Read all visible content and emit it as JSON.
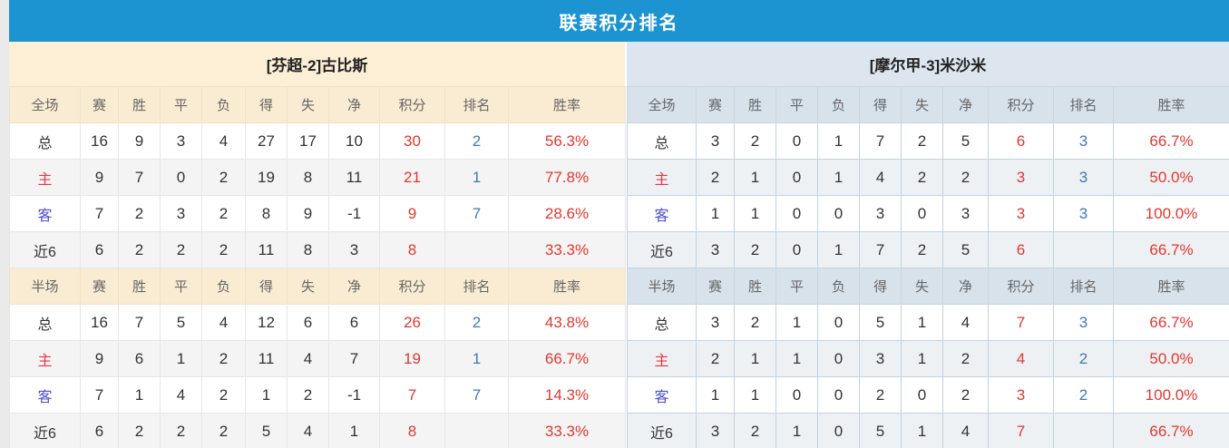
{
  "title": "联赛积分排名",
  "columns": [
    "赛",
    "胜",
    "平",
    "负",
    "得",
    "失",
    "净",
    "积分",
    "排名",
    "胜率"
  ],
  "colors": {
    "title_bar_bg": "#1d94d2",
    "title_text": "#ffffff",
    "left_header_bg": "#faecd2",
    "right_header_bg": "#d8e2eb",
    "points_red": "#e0382e",
    "rank_blue": "#3d79bc",
    "home_label_red": "#e23744",
    "away_label_blue": "#4d4dd2"
  },
  "teams": [
    {
      "name": "[芬超-2]古比斯",
      "sections": [
        {
          "scope": "全场",
          "rows": [
            {
              "label": "总",
              "type": "total",
              "cells": [
                "16",
                "9",
                "3",
                "4",
                "27",
                "17",
                "10"
              ],
              "points": "30",
              "rank": "2",
              "rate": "56.3%"
            },
            {
              "label": "主",
              "type": "home",
              "cells": [
                "9",
                "7",
                "0",
                "2",
                "19",
                "8",
                "11"
              ],
              "points": "21",
              "rank": "1",
              "rate": "77.8%"
            },
            {
              "label": "客",
              "type": "away",
              "cells": [
                "7",
                "2",
                "3",
                "2",
                "8",
                "9",
                "-1"
              ],
              "points": "9",
              "rank": "7",
              "rate": "28.6%"
            },
            {
              "label": "近6",
              "type": "recent",
              "cells": [
                "6",
                "2",
                "2",
                "2",
                "11",
                "8",
                "3"
              ],
              "points": "8",
              "rank": "",
              "rate": "33.3%"
            }
          ]
        },
        {
          "scope": "半场",
          "rows": [
            {
              "label": "总",
              "type": "total",
              "cells": [
                "16",
                "7",
                "5",
                "4",
                "12",
                "6",
                "6"
              ],
              "points": "26",
              "rank": "2",
              "rate": "43.8%"
            },
            {
              "label": "主",
              "type": "home",
              "cells": [
                "9",
                "6",
                "1",
                "2",
                "11",
                "4",
                "7"
              ],
              "points": "19",
              "rank": "1",
              "rate": "66.7%"
            },
            {
              "label": "客",
              "type": "away",
              "cells": [
                "7",
                "1",
                "4",
                "2",
                "1",
                "2",
                "-1"
              ],
              "points": "7",
              "rank": "7",
              "rate": "14.3%"
            },
            {
              "label": "近6",
              "type": "recent",
              "cells": [
                "6",
                "2",
                "2",
                "2",
                "5",
                "4",
                "1"
              ],
              "points": "8",
              "rank": "",
              "rate": "33.3%"
            }
          ]
        }
      ]
    },
    {
      "name": "[摩尔甲-3]米沙米",
      "sections": [
        {
          "scope": "全场",
          "rows": [
            {
              "label": "总",
              "type": "total",
              "cells": [
                "3",
                "2",
                "0",
                "1",
                "7",
                "2",
                "5"
              ],
              "points": "6",
              "rank": "3",
              "rate": "66.7%"
            },
            {
              "label": "主",
              "type": "home",
              "cells": [
                "2",
                "1",
                "0",
                "1",
                "4",
                "2",
                "2"
              ],
              "points": "3",
              "rank": "3",
              "rate": "50.0%"
            },
            {
              "label": "客",
              "type": "away",
              "cells": [
                "1",
                "1",
                "0",
                "0",
                "3",
                "0",
                "3"
              ],
              "points": "3",
              "rank": "3",
              "rate": "100.0%"
            },
            {
              "label": "近6",
              "type": "recent",
              "cells": [
                "3",
                "2",
                "0",
                "1",
                "7",
                "2",
                "5"
              ],
              "points": "6",
              "rank": "",
              "rate": "66.7%"
            }
          ]
        },
        {
          "scope": "半场",
          "rows": [
            {
              "label": "总",
              "type": "total",
              "cells": [
                "3",
                "2",
                "1",
                "0",
                "5",
                "1",
                "4"
              ],
              "points": "7",
              "rank": "3",
              "rate": "66.7%"
            },
            {
              "label": "主",
              "type": "home",
              "cells": [
                "2",
                "1",
                "1",
                "0",
                "3",
                "1",
                "2"
              ],
              "points": "4",
              "rank": "2",
              "rate": "50.0%"
            },
            {
              "label": "客",
              "type": "away",
              "cells": [
                "1",
                "1",
                "0",
                "0",
                "2",
                "0",
                "2"
              ],
              "points": "3",
              "rank": "2",
              "rate": "100.0%"
            },
            {
              "label": "近6",
              "type": "recent",
              "cells": [
                "3",
                "2",
                "1",
                "0",
                "5",
                "1",
                "4"
              ],
              "points": "7",
              "rank": "",
              "rate": "66.7%"
            }
          ]
        }
      ]
    }
  ]
}
